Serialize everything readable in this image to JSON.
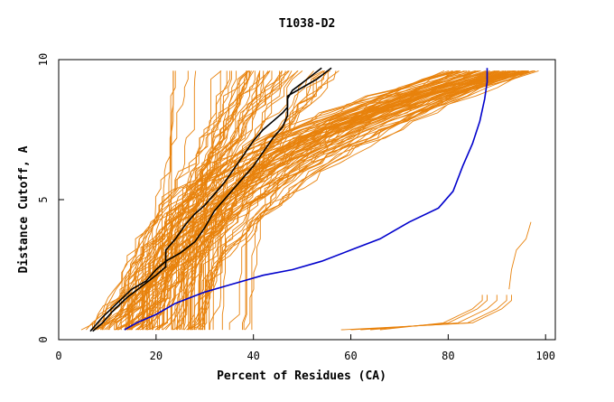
{
  "chart_data": {
    "type": "line",
    "title": "T1038-D2",
    "xlabel": "Percent of Residues (CA)",
    "ylabel": "Distance Cutoff, A",
    "xlim": [
      0,
      102
    ],
    "ylim": [
      0,
      10
    ],
    "x_ticks": [
      "0",
      "20",
      "40",
      "60",
      "80",
      "100"
    ],
    "y_ticks": [
      "0",
      "5",
      "10"
    ],
    "grid": false,
    "legend": "none",
    "colors": {
      "models": "#e8820c",
      "highlight_black": "#000000",
      "highlight_blue": "#0000cc"
    },
    "series": [
      {
        "color": "#000000",
        "x": [
          6.5,
          9,
          12,
          15,
          18,
          20,
          22,
          25,
          28,
          30,
          32,
          34,
          36,
          38,
          40,
          42,
          44,
          46,
          47,
          47,
          50,
          53,
          56
        ],
        "y": [
          0.3,
          0.8,
          1.3,
          1.8,
          2.1,
          2.5,
          2.8,
          3.1,
          3.5,
          4.0,
          4.6,
          5.0,
          5.4,
          5.8,
          6.2,
          6.7,
          7.2,
          7.6,
          8.0,
          8.7,
          9.0,
          9.3,
          9.7
        ]
      },
      {
        "color": "#000000",
        "x": [
          7,
          9,
          11,
          14,
          17,
          20,
          22,
          22,
          24,
          26,
          28,
          30,
          32,
          34,
          36,
          38,
          40,
          42,
          44,
          46,
          47,
          47,
          48,
          51,
          54
        ],
        "y": [
          0.3,
          0.6,
          1.0,
          1.5,
          1.9,
          2.3,
          2.6,
          3.2,
          3.6,
          4.1,
          4.5,
          4.8,
          5.2,
          5.6,
          6.1,
          6.6,
          7.1,
          7.5,
          7.8,
          8.1,
          8.3,
          8.6,
          8.9,
          9.3,
          9.7
        ]
      },
      {
        "color": "#0000cc",
        "x": [
          13.5,
          16,
          20,
          24,
          30,
          36,
          42,
          48,
          54,
          60,
          66,
          72,
          78,
          81,
          83,
          85,
          86.5,
          87.5,
          88,
          88
        ],
        "y": [
          0.35,
          0.6,
          0.9,
          1.3,
          1.7,
          2.0,
          2.3,
          2.5,
          2.8,
          3.2,
          3.6,
          4.2,
          4.7,
          5.3,
          6.2,
          7.0,
          7.8,
          8.6,
          9.2,
          9.7
        ]
      }
    ]
  }
}
